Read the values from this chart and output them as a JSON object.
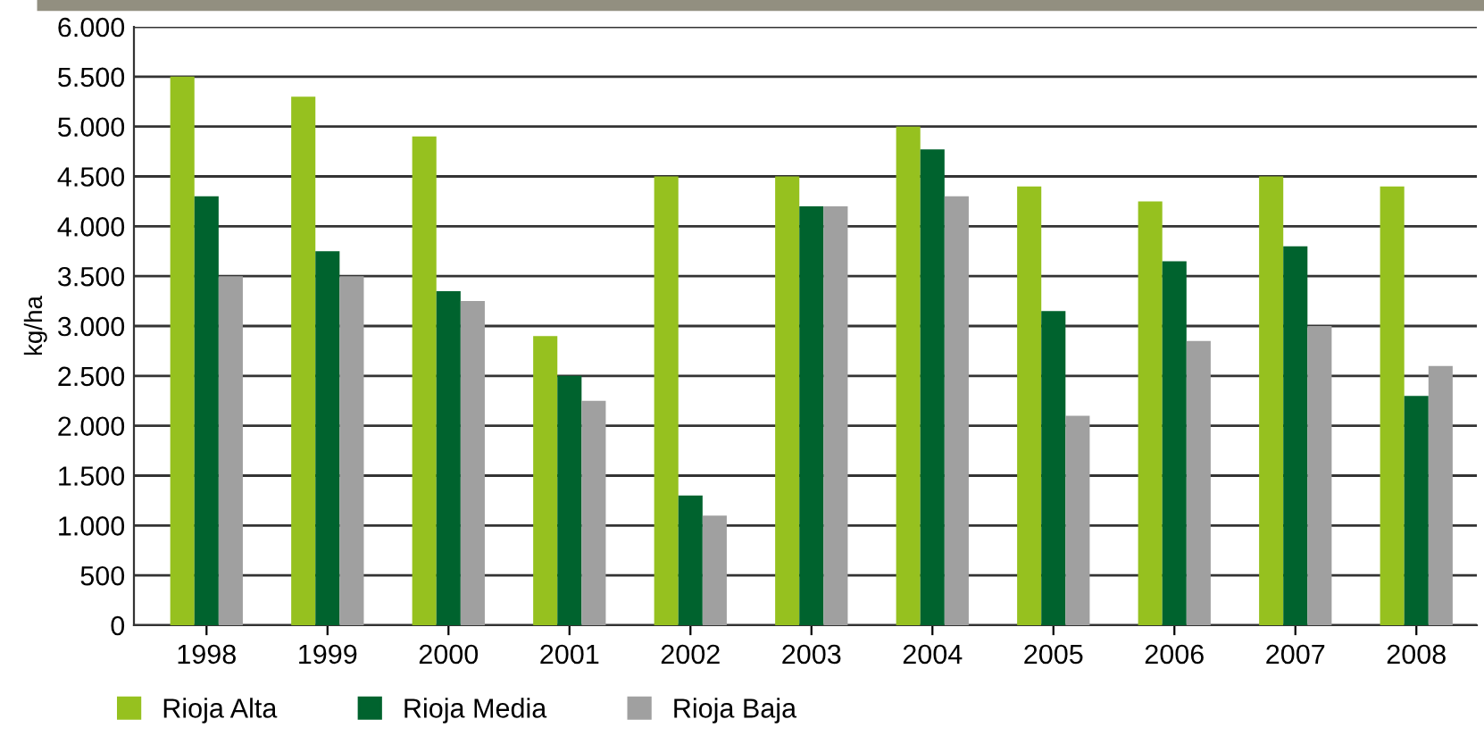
{
  "chart_data": {
    "type": "bar",
    "ylabel": "kg/ha",
    "categories": [
      "1998",
      "1999",
      "2000",
      "2001",
      "2002",
      "2003",
      "2004",
      "2005",
      "2006",
      "2007",
      "2008"
    ],
    "series": [
      {
        "name": "Rioja Alta",
        "color": "#96c11f",
        "values": [
          5500,
          5300,
          4900,
          2900,
          4500,
          4500,
          5000,
          4400,
          4250,
          4500,
          4400
        ]
      },
      {
        "name": "Rioja Media",
        "color": "#00632e",
        "values": [
          4300,
          3750,
          3350,
          2500,
          1300,
          4200,
          4770,
          3150,
          3650,
          3800,
          2300
        ]
      },
      {
        "name": "Rioja Baja",
        "color": "#a0a0a0",
        "values": [
          3500,
          3500,
          3250,
          2250,
          1100,
          4200,
          4300,
          2100,
          2850,
          3000,
          2600
        ]
      }
    ],
    "ylim": [
      0,
      6000
    ],
    "yticks": [
      {
        "value": 0,
        "label": "0"
      },
      {
        "value": 500,
        "label": "500"
      },
      {
        "value": 1000,
        "label": "1.000"
      },
      {
        "value": 1500,
        "label": "1.500"
      },
      {
        "value": 2000,
        "label": "2.000"
      },
      {
        "value": 2500,
        "label": "2.500"
      },
      {
        "value": 3000,
        "label": "3.000"
      },
      {
        "value": 3500,
        "label": "3.500"
      },
      {
        "value": 4000,
        "label": "4.000"
      },
      {
        "value": 4500,
        "label": "4.500"
      },
      {
        "value": 5000,
        "label": "5.000"
      },
      {
        "value": 5500,
        "label": "5.500"
      },
      {
        "value": 6000,
        "label": "6.000"
      }
    ],
    "grid": "y",
    "legend": "bottom left"
  }
}
